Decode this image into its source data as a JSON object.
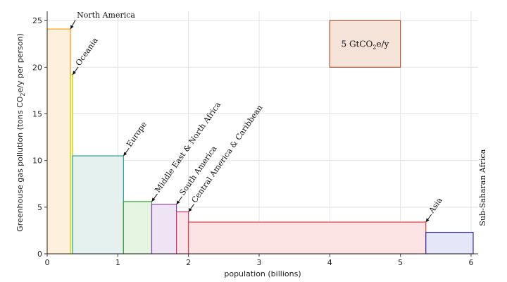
{
  "chart_data": {
    "type": "bar",
    "subtype": "variable-width",
    "xlabel": "population (billions)",
    "ylabel_main": "Greenhouse gas pollution (tons CO",
    "ylabel_sub": "2",
    "ylabel_end": "e/y per person)",
    "xlim": [
      0,
      6.1
    ],
    "ylim": [
      0,
      26
    ],
    "xticks": [
      0,
      1,
      2,
      3,
      4,
      5,
      6
    ],
    "yticks": [
      0,
      5,
      10,
      15,
      20,
      25
    ],
    "grid": true,
    "legend": {
      "position": "top-right",
      "text_main": "5 GtCO",
      "text_sub": "2",
      "text_end": "e/y",
      "color": "#a0522d",
      "fill": "#f5e3da",
      "x_range": [
        4,
        5
      ],
      "y_range": [
        20,
        25
      ]
    },
    "regions": [
      {
        "name": "North America",
        "x0": 0.0,
        "width": 0.33,
        "value": 24.1,
        "color": "#f39c12",
        "fill": "#fdf1dd"
      },
      {
        "name": "Oceania",
        "x0": 0.33,
        "width": 0.03,
        "value": 19.2,
        "color": "#c8c800",
        "fill": "#f7f7c8"
      },
      {
        "name": "Europe",
        "x0": 0.36,
        "width": 0.72,
        "value": 10.5,
        "color": "#2a9d8f",
        "fill": "#e4f1ef"
      },
      {
        "name": "Middle East & North Africa",
        "x0": 1.08,
        "width": 0.4,
        "value": 5.6,
        "color": "#3aa13a",
        "fill": "#e6f4e2"
      },
      {
        "name": "South America",
        "x0": 1.48,
        "width": 0.35,
        "value": 5.3,
        "color": "#8e44ad",
        "fill": "#eee4f4"
      },
      {
        "name": "Central America & Caribbean",
        "x0": 1.83,
        "width": 0.17,
        "value": 4.5,
        "color": "#d6336c",
        "fill": "#fbe3ea"
      },
      {
        "name": "Asia",
        "x0": 2.0,
        "width": 3.36,
        "value": 3.4,
        "color": "#e63946",
        "fill": "#fde4e4"
      },
      {
        "name": "Sub-Saharan Africa",
        "x0": 5.36,
        "width": 0.67,
        "value": 2.3,
        "color": "#3333aa",
        "fill": "#e5e6f7"
      }
    ]
  }
}
